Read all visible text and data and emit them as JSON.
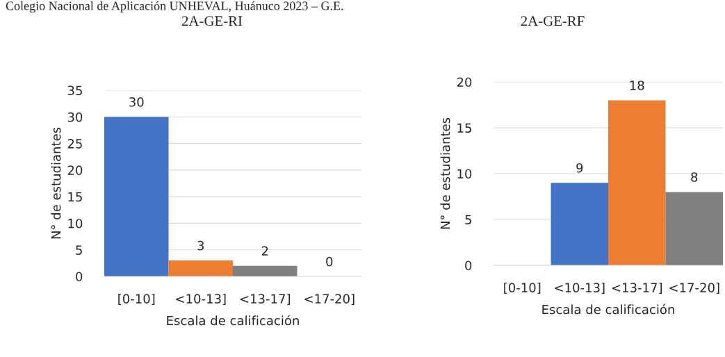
{
  "chart_data": [
    {
      "type": "bar",
      "title": "2A-GE-RI",
      "annotations": [
        "Colegio Nacional de Aplicación UNHEVAL, Huánuco 2023 – G.E."
      ],
      "xlabel": "Escala de calificación",
      "ylabel": "N° de estudiantes",
      "categories": [
        "[0-10]",
        "<10-13]",
        "<13-17]",
        "<17-20]"
      ],
      "values": [
        30,
        3,
        2,
        0
      ],
      "colors": [
        "#4472c4",
        "#ed7d31",
        "#7f7f7f",
        null
      ],
      "ylim": [
        0,
        35
      ],
      "yticks": [
        0,
        5,
        10,
        15,
        20,
        25,
        30,
        35
      ],
      "grid": "y",
      "data_labels": true
    },
    {
      "type": "bar",
      "title": "2A-GE-RF",
      "xlabel": "Escala de calificación",
      "ylabel": "N° de estudiantes",
      "categories": [
        "[0-10]",
        "<10-13]",
        "<13-17]",
        "<17-20]"
      ],
      "values": [
        0,
        9,
        18,
        8
      ],
      "colors": [
        null,
        "#4472c4",
        "#ed7d31",
        "#7f7f7f"
      ],
      "value_labels": [
        null,
        "9",
        "18",
        "8"
      ],
      "ylim": [
        0,
        20
      ],
      "yticks": [
        0,
        5,
        10,
        15,
        20
      ],
      "grid": "y"
    }
  ]
}
